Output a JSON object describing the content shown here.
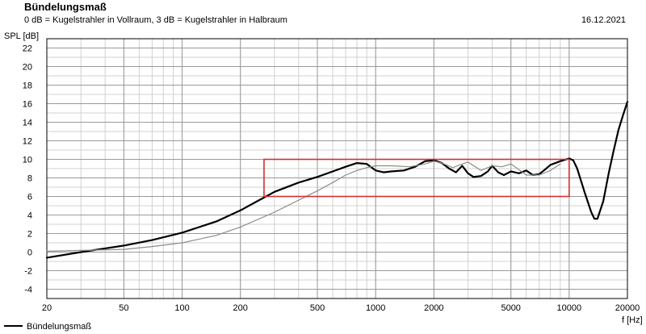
{
  "header": {
    "title": "Bündelungsmaß",
    "subtitle": "0 dB = Kugelstrahler in Vollraum, 3 dB = Kugelstrahler in Halbraum",
    "date": "16.12.2021"
  },
  "colors": {
    "background": "#ffffff",
    "grid_major": "#9a9a9a",
    "grid_minor": "#d0d0d0",
    "axis": "#000000",
    "series_main": "#000000",
    "series_secondary": "#8c8c8c",
    "annotation_box": "#d32f2f"
  },
  "chart_data": {
    "type": "line",
    "title": "Bündelungsmaß",
    "subtitle": "0 dB = Kugelstrahler in Vollraum, 3 dB = Kugelstrahler in Halbraum",
    "xlabel": "f [Hz]",
    "ylabel": "SPL [dB]",
    "xscale": "log",
    "xlim": [
      20,
      20000
    ],
    "ylim": [
      -5,
      23
    ],
    "xticks": [
      20,
      50,
      100,
      200,
      500,
      1000,
      2000,
      5000,
      10000,
      20000
    ],
    "yticks": [
      -4,
      -2,
      0,
      2,
      4,
      6,
      8,
      10,
      12,
      14,
      16,
      18,
      20,
      22
    ],
    "grid": true,
    "legend_position": "bottom-left",
    "series": [
      {
        "name": "Bündelungsmaß",
        "color": "#000000",
        "x": [
          20,
          30,
          40,
          50,
          70,
          100,
          150,
          200,
          250,
          300,
          400,
          500,
          600,
          700,
          800,
          900,
          1000,
          1100,
          1200,
          1400,
          1600,
          1800,
          2000,
          2200,
          2400,
          2600,
          2800,
          3000,
          3200,
          3500,
          3800,
          4000,
          4300,
          4600,
          5000,
          5500,
          6000,
          6500,
          7000,
          7500,
          8000,
          9000,
          10000,
          10500,
          11000,
          12000,
          13000,
          13500,
          14000,
          15000,
          16000,
          17000,
          18000,
          19000,
          20000
        ],
        "y": [
          -0.6,
          0.0,
          0.4,
          0.7,
          1.3,
          2.1,
          3.3,
          4.5,
          5.6,
          6.5,
          7.5,
          8.1,
          8.7,
          9.2,
          9.6,
          9.5,
          8.8,
          8.6,
          8.7,
          8.8,
          9.2,
          9.8,
          9.9,
          9.6,
          9.0,
          8.6,
          9.3,
          8.5,
          8.1,
          8.2,
          8.7,
          9.3,
          8.6,
          8.3,
          8.7,
          8.5,
          8.8,
          8.3,
          8.4,
          8.9,
          9.4,
          9.8,
          10.1,
          9.9,
          9.0,
          6.5,
          4.3,
          3.6,
          3.6,
          5.5,
          8.5,
          11.0,
          13.2,
          14.8,
          16.2
        ]
      },
      {
        "color": "#8c8c8c",
        "x": [
          20,
          50,
          70,
          100,
          150,
          200,
          300,
          400,
          500,
          600,
          700,
          800,
          900,
          1000,
          1200,
          1500,
          1800,
          2000,
          2200,
          2500,
          2800,
          3000,
          3500,
          4000,
          4500,
          5000,
          5500,
          6000,
          7000,
          8000,
          9000
        ],
        "y": [
          0.1,
          0.3,
          0.6,
          1.0,
          1.8,
          2.7,
          4.3,
          5.6,
          6.6,
          7.5,
          8.3,
          8.8,
          9.1,
          9.3,
          9.3,
          9.2,
          9.5,
          9.8,
          9.6,
          9.1,
          9.5,
          9.7,
          8.8,
          9.3,
          9.2,
          9.5,
          8.9,
          8.3,
          8.3,
          8.8,
          9.5
        ]
      }
    ],
    "annotations": [
      {
        "type": "tolerance_box",
        "color": "#d32f2f",
        "x_range": [
          265,
          10000
        ],
        "y_range": [
          6,
          10
        ]
      }
    ]
  }
}
